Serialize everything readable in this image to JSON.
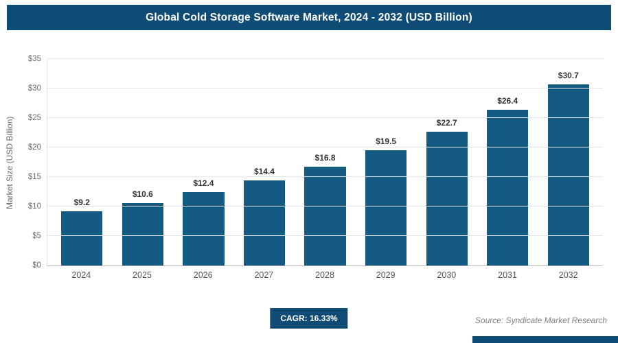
{
  "header": {
    "title": "Global Cold Storage Software Market, 2024 - 2032 (USD Billion)"
  },
  "chart_data": {
    "type": "bar",
    "title": "Global Cold Storage Software Market, 2024 - 2032 (USD Billion)",
    "categories": [
      "2024",
      "2025",
      "2026",
      "2027",
      "2028",
      "2029",
      "2030",
      "2031",
      "2032"
    ],
    "values": [
      9.2,
      10.6,
      12.4,
      14.4,
      16.8,
      19.5,
      22.7,
      26.4,
      30.7
    ],
    "display_values": [
      "$9.2",
      "$10.6",
      "$12.4",
      "$14.4",
      "$16.8",
      "$19.5",
      "$22.7",
      "$26.4",
      "$30.7"
    ],
    "xlabel": "",
    "ylabel": "Market Size (USD Billion)",
    "ylim": [
      0,
      35
    ],
    "ytick_values": [
      0,
      5,
      10,
      15,
      20,
      25,
      30,
      35
    ],
    "ytick_labels": [
      "$0",
      "$5",
      "$10",
      "$15",
      "$20",
      "$25",
      "$30",
      "$35"
    ],
    "grid": true,
    "legend": "none"
  },
  "footer": {
    "cagr_label": "CAGR: 16.33%",
    "source": "Source: Syndicate Market Research"
  },
  "colors": {
    "header_bg": "#0f4c75",
    "bar": "#155a83",
    "badge_bg": "#0f4c75",
    "accent_bg": "#0f4c75",
    "label_text": "#333333",
    "axis_text": "#6b6b6b"
  }
}
